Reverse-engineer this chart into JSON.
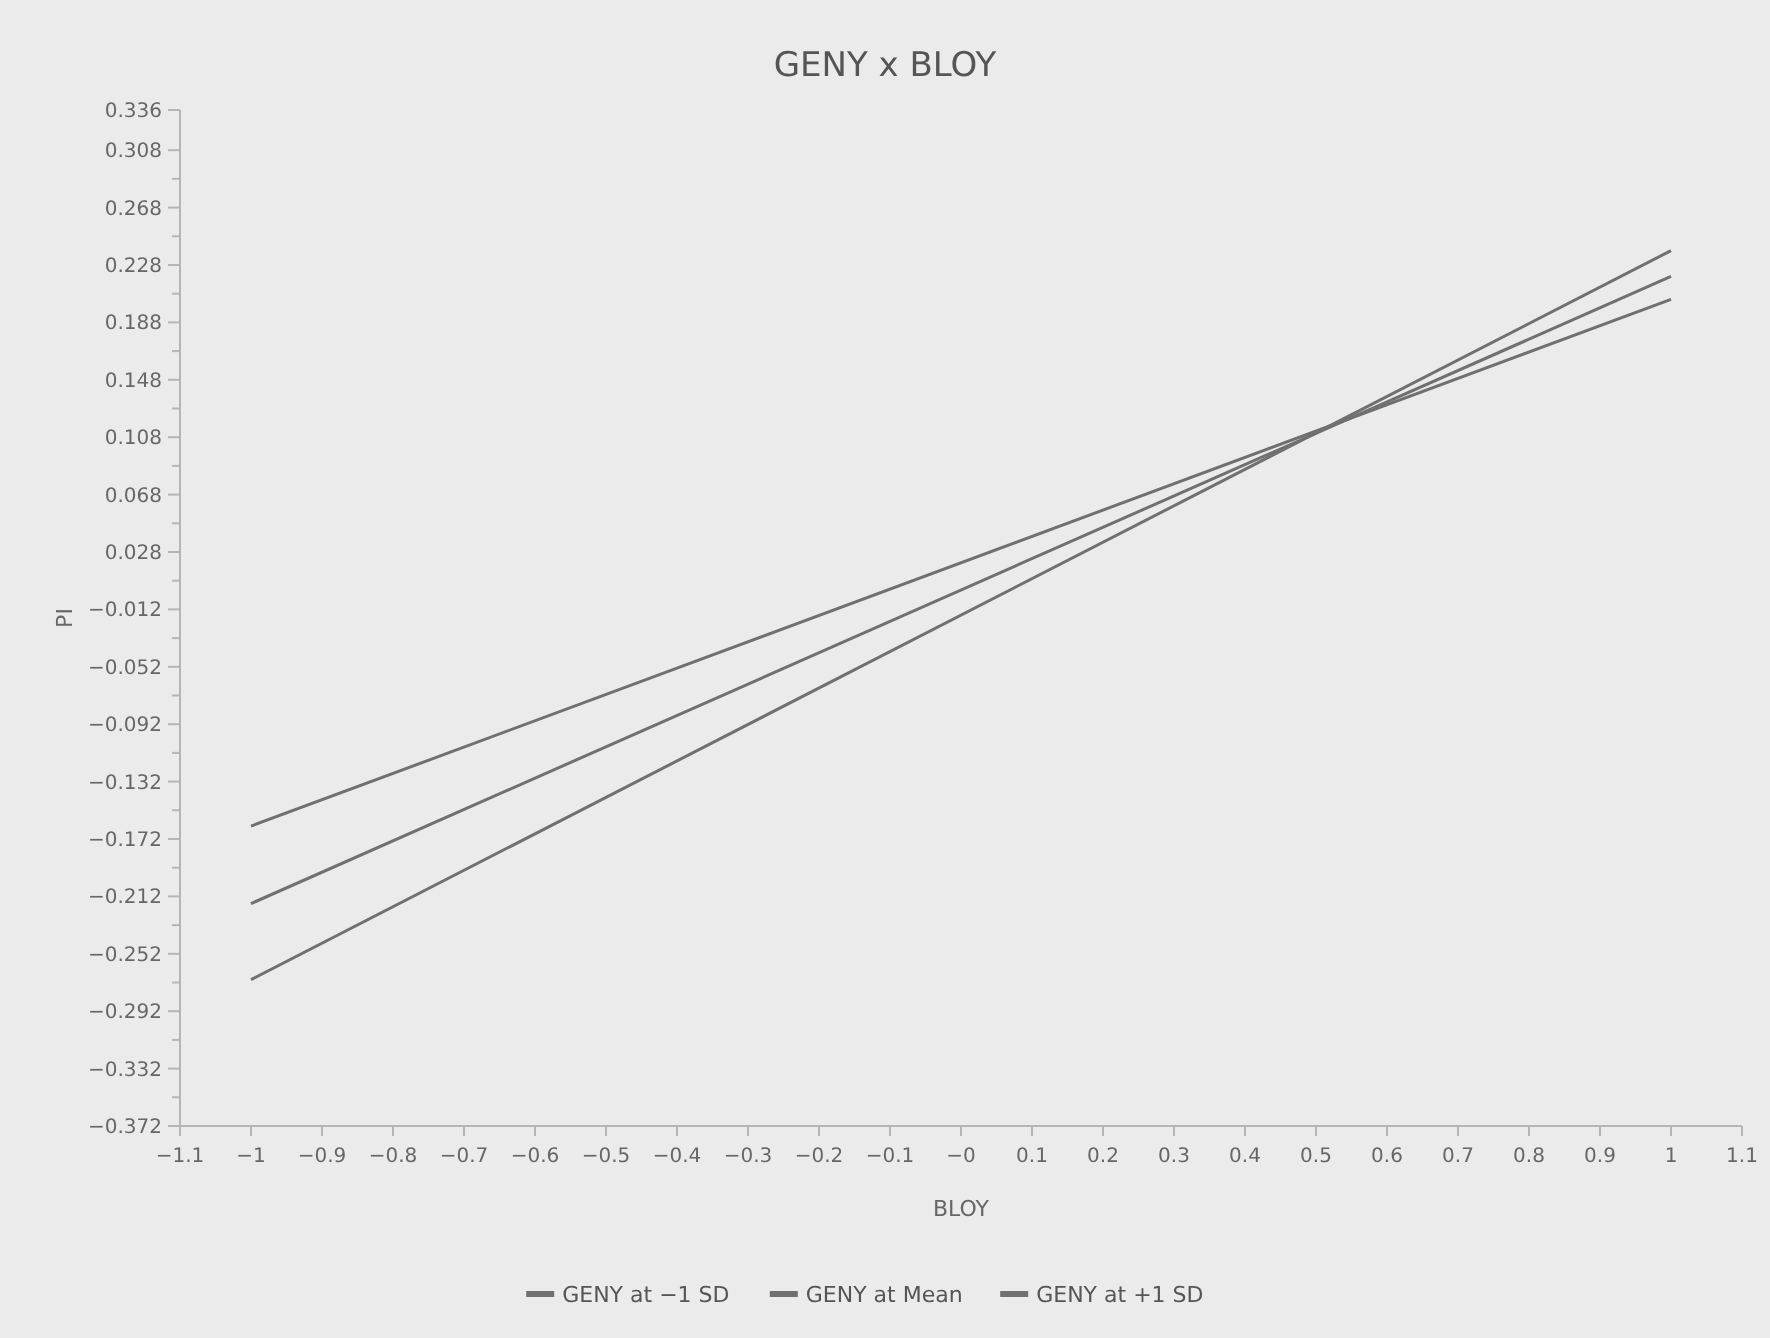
{
  "chart_data": {
    "type": "line",
    "title": "GENY x BLOY",
    "xlabel": "BLOY",
    "ylabel": "PI",
    "x": [
      -1,
      1
    ],
    "series": [
      {
        "name": "GENY at −1 SD",
        "color": "#707070",
        "values": [
          -0.163,
          0.204
        ]
      },
      {
        "name": "GENY at Mean",
        "color": "#707070",
        "values": [
          -0.217,
          0.22
        ]
      },
      {
        "name": "GENY at +1 SD",
        "color": "#707070",
        "values": [
          -0.27,
          0.238
        ]
      }
    ],
    "xlim": [
      -1.1,
      1.1
    ],
    "xticks": [
      {
        "value": -1.1,
        "label": "−1.1"
      },
      {
        "value": -1,
        "label": "−1"
      },
      {
        "value": -0.9,
        "label": "−0.9"
      },
      {
        "value": -0.8,
        "label": "−0.8"
      },
      {
        "value": -0.7,
        "label": "−0.7"
      },
      {
        "value": -0.6,
        "label": "−0.6"
      },
      {
        "value": -0.5,
        "label": "−0.5"
      },
      {
        "value": -0.4,
        "label": "−0.4"
      },
      {
        "value": -0.3,
        "label": "−0.3"
      },
      {
        "value": -0.2,
        "label": "−0.2"
      },
      {
        "value": -0.1,
        "label": "−0.1"
      },
      {
        "value": 0,
        "label": "−0"
      },
      0.1,
      0.2,
      0.3,
      0.4,
      0.5,
      0.6,
      0.7,
      0.8,
      0.9,
      1,
      1.1
    ],
    "ylim": [
      -0.372,
      0.336
    ],
    "yticks": [
      0.336,
      0.308,
      {
        "value": 0.288,
        "label": null
      },
      0.268,
      {
        "value": 0.248,
        "label": null
      },
      0.228,
      {
        "value": 0.208,
        "label": null
      },
      0.188,
      {
        "value": 0.168,
        "label": null
      },
      0.148,
      {
        "value": 0.128,
        "label": null
      },
      0.108,
      {
        "value": 0.088,
        "label": null
      },
      0.068,
      {
        "value": 0.048,
        "label": null
      },
      0.028,
      {
        "value": 0.008,
        "label": null
      },
      {
        "value": -0.012,
        "label": "−0.012"
      },
      {
        "value": -0.032,
        "label": null
      },
      {
        "value": -0.052,
        "label": "−0.052"
      },
      {
        "value": -0.072,
        "label": null
      },
      {
        "value": -0.092,
        "label": "−0.092"
      },
      {
        "value": -0.112,
        "label": null
      },
      {
        "value": -0.132,
        "label": "−0.132"
      },
      {
        "value": -0.152,
        "label": null
      },
      {
        "value": -0.172,
        "label": "−0.172"
      },
      {
        "value": -0.192,
        "label": null
      },
      {
        "value": -0.212,
        "label": "−0.212"
      },
      {
        "value": -0.232,
        "label": null
      },
      {
        "value": -0.252,
        "label": "−0.252"
      },
      {
        "value": -0.272,
        "label": null
      },
      {
        "value": -0.292,
        "label": "−0.292"
      },
      {
        "value": -0.312,
        "label": null
      },
      {
        "value": -0.332,
        "label": "−0.332"
      },
      {
        "value": -0.352,
        "label": null
      },
      {
        "value": -0.372,
        "label": "−0.372"
      }
    ],
    "grid": false,
    "legend": "bottom",
    "marker": "none",
    "line_style": "solid"
  }
}
